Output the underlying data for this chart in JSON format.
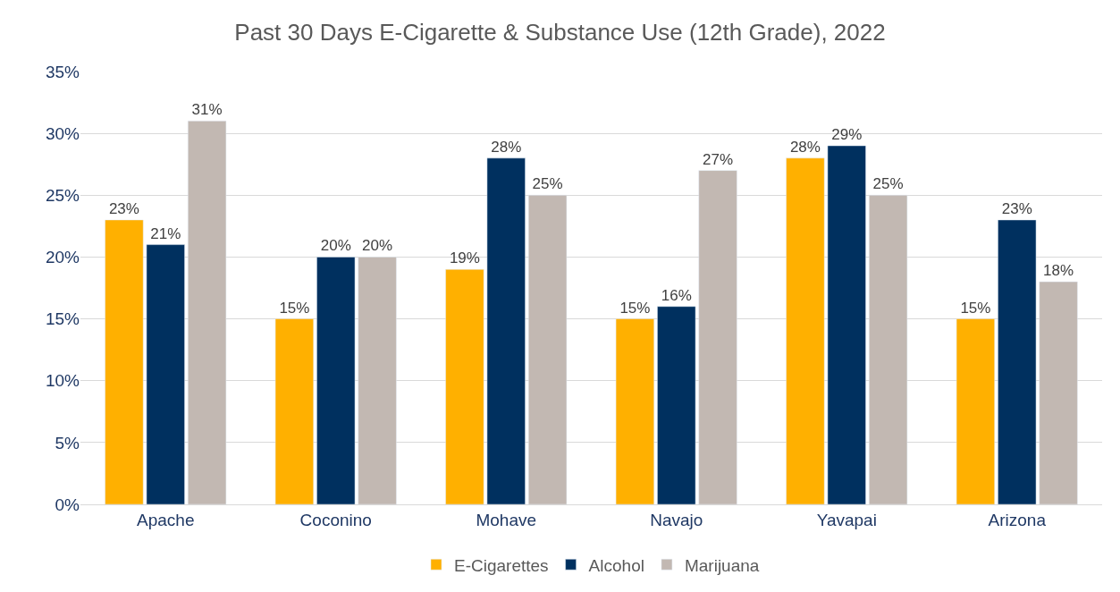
{
  "chart_data": {
    "type": "bar",
    "title": "Past 30 Days E-Cigarette & Substance Use (12th Grade), 2022",
    "categories": [
      "Apache",
      "Coconino",
      "Mohave",
      "Navajo",
      "Yavapai",
      "Arizona"
    ],
    "series": [
      {
        "name": "E-Cigarettes",
        "color": "#ffb000",
        "values": [
          23,
          15,
          19,
          15,
          28,
          15
        ],
        "value_labels": [
          "23%",
          "15%",
          "19%",
          "15%",
          "28%",
          "15%"
        ]
      },
      {
        "name": "Alcohol",
        "color": "#00305f",
        "values": [
          21,
          20,
          28,
          16,
          29,
          23
        ],
        "value_labels": [
          "21%",
          "20%",
          "28%",
          "16%",
          "29%",
          "23%"
        ]
      },
      {
        "name": "Marijuana",
        "color": "#c2b8b2",
        "values": [
          31,
          20,
          25,
          27,
          25,
          18
        ],
        "value_labels": [
          "31%",
          "20%",
          "25%",
          "27%",
          "25%",
          "18%"
        ]
      }
    ],
    "ylim": [
      0,
      35
    ],
    "yticks": [
      {
        "value": 0,
        "label": "0%"
      },
      {
        "value": 5,
        "label": "5%"
      },
      {
        "value": 10,
        "label": "10%"
      },
      {
        "value": 15,
        "label": "15%"
      },
      {
        "value": 20,
        "label": "20%"
      },
      {
        "value": 25,
        "label": "25%"
      },
      {
        "value": 30,
        "label": "30%"
      },
      {
        "value": 35,
        "label": "35%"
      }
    ],
    "grid": "y",
    "legend": "bottom"
  }
}
